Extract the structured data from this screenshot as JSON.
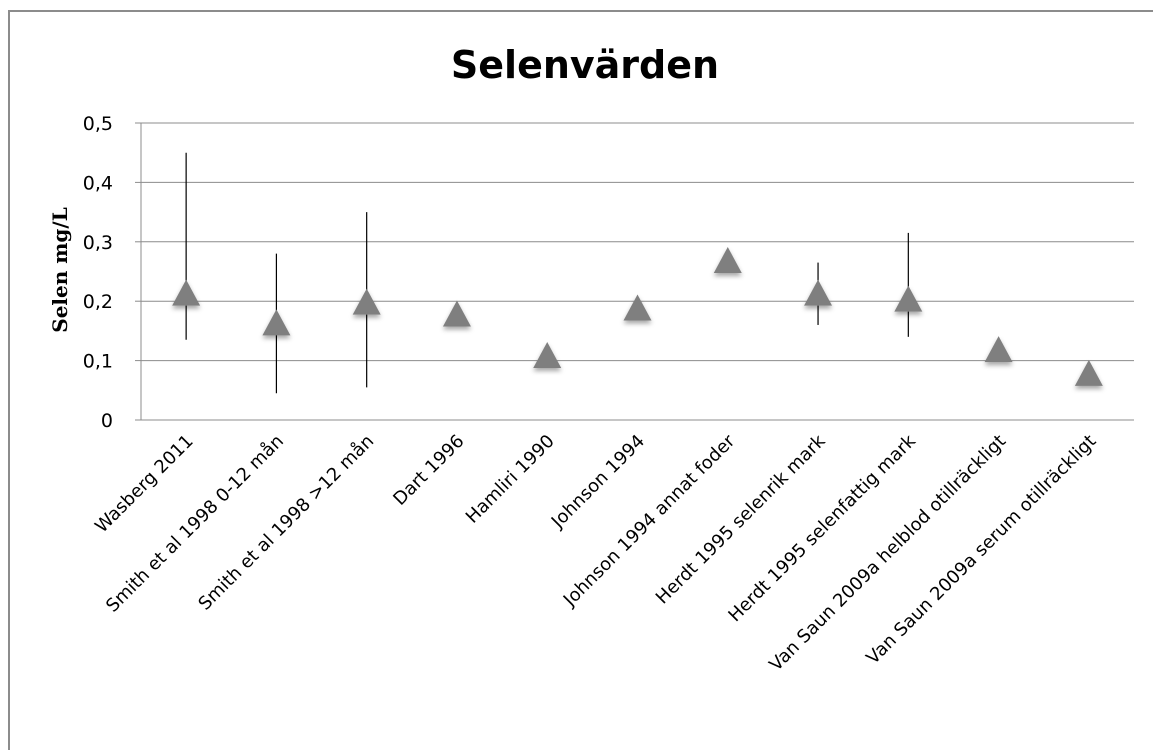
{
  "chart_data": {
    "type": "scatter",
    "title": "Selenvärden",
    "ylabel": "Selen mg/L",
    "xlabel": "",
    "ylim": [
      0,
      0.5
    ],
    "yticks": [
      "0",
      "0,1",
      "0,2",
      "0,3",
      "0,4",
      "0,5"
    ],
    "grid": true,
    "marker": "triangle",
    "marker_color": "#7f7f7f",
    "categories": [
      "Wasberg 2011",
      "Smith et al 1998 0-12 mån",
      "Smith et al 1998 >12 mån",
      "Dart 1996",
      "Hamliri 1990",
      "Johnson 1994",
      "Johnson 1994 annat foder",
      "Herdt 1995 selenrik mark",
      "Herdt 1995 selenfattig mark",
      "Van Saun 2009a helblod otillräckligt",
      "Van Saun 2009a serum otillräckligt"
    ],
    "values": [
      0.21,
      0.16,
      0.195,
      0.175,
      0.105,
      0.185,
      0.265,
      0.21,
      0.2,
      0.115,
      0.075
    ],
    "error_low": [
      0.135,
      0.045,
      0.055,
      null,
      null,
      null,
      null,
      0.16,
      0.14,
      null,
      null
    ],
    "error_high": [
      0.45,
      0.28,
      0.35,
      null,
      null,
      null,
      null,
      0.265,
      0.315,
      null,
      null
    ]
  }
}
